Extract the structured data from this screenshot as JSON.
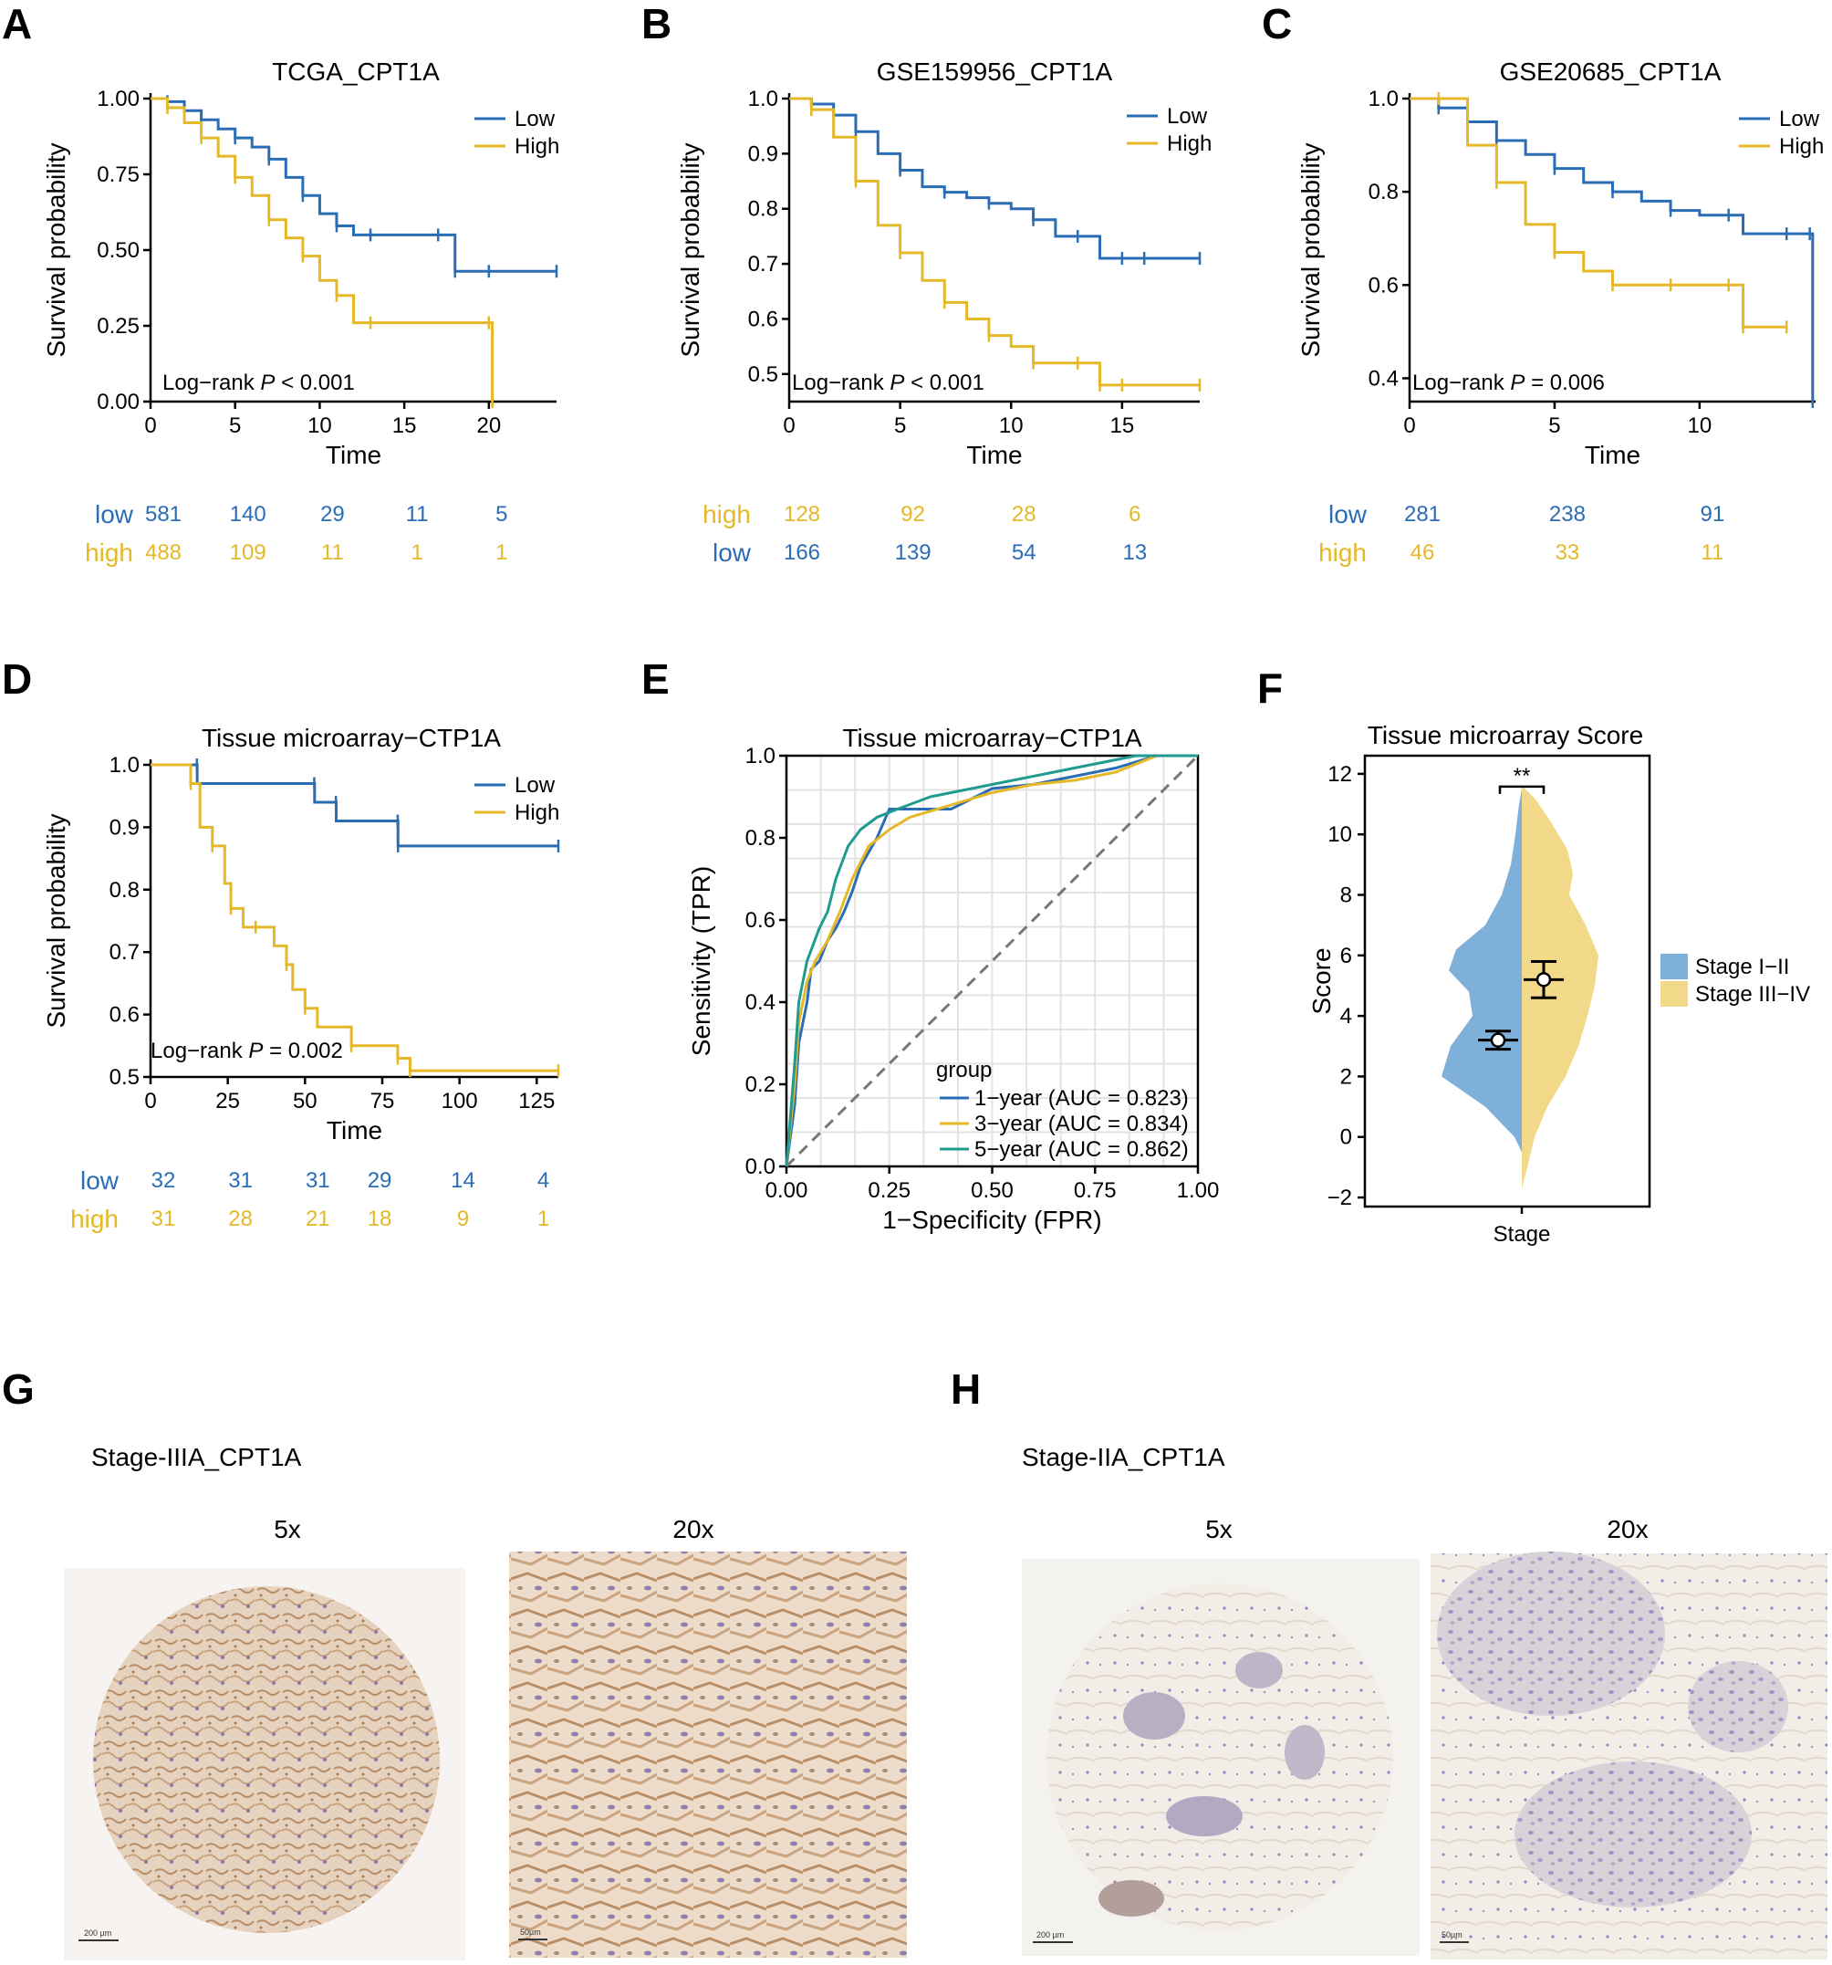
{
  "colors": {
    "low": "#2a6db5",
    "high": "#e4b827",
    "roc_green": "#1f9b8f",
    "violin_blue": "#7fb0da",
    "violin_yellow": "#f2d98a",
    "tissue_brown": "#c9a887",
    "tissue_blue": "#a9a3c7"
  },
  "panel_labels": [
    "A",
    "B",
    "C",
    "D",
    "E",
    "F",
    "G",
    "H"
  ],
  "km_common": {
    "ylabel": "Survival probability",
    "xlabel": "Time",
    "legend_low": "Low",
    "legend_high": "High"
  },
  "chart_data": [
    {
      "id": "A",
      "type": "line",
      "title": "TCGA_CPT1A",
      "xlim": [
        0,
        24
      ],
      "ylim": [
        0,
        1
      ],
      "xticks": [
        0,
        5,
        10,
        15,
        20
      ],
      "yticks": [
        0,
        0.25,
        0.5,
        0.75,
        1
      ],
      "yticklabels": [
        "0.00",
        "0.25",
        "0.50",
        "0.75",
        "1.00"
      ],
      "pvalue_prefix": "Log−rank ",
      "pvalue_p": "P",
      "pvalue_suffix": " < 0.001",
      "series": [
        {
          "name": "Low",
          "x": [
            0,
            1,
            2,
            3,
            4,
            5,
            6,
            7,
            8,
            9,
            10,
            11,
            12,
            13,
            15,
            17,
            18,
            20,
            24
          ],
          "y": [
            1,
            0.99,
            0.96,
            0.93,
            0.9,
            0.87,
            0.84,
            0.8,
            0.74,
            0.68,
            0.62,
            0.58,
            0.55,
            0.55,
            0.55,
            0.55,
            0.43,
            0.43,
            0.43
          ]
        },
        {
          "name": "High",
          "x": [
            0,
            1,
            2,
            3,
            4,
            5,
            6,
            7,
            8,
            9,
            10,
            11,
            12,
            13,
            20,
            20.2
          ],
          "y": [
            1,
            0.97,
            0.92,
            0.87,
            0.81,
            0.74,
            0.68,
            0.6,
            0.54,
            0.48,
            0.4,
            0.35,
            0.26,
            0.26,
            0.26,
            0
          ]
        }
      ],
      "risk_table": {
        "rows": [
          {
            "label": "low",
            "group": "low",
            "x": [
              0,
              5,
              10,
              15,
              20
            ],
            "values": [
              "581",
              "140",
              "29",
              "11",
              "5"
            ]
          },
          {
            "label": "high",
            "group": "high",
            "x": [
              0,
              5,
              10,
              15,
              20
            ],
            "values": [
              "488",
              "109",
              "11",
              "1",
              "1"
            ]
          }
        ]
      }
    },
    {
      "id": "B",
      "type": "line",
      "title": "GSE159956_CPT1A",
      "xlim": [
        0,
        18.5
      ],
      "ylim": [
        0.45,
        1
      ],
      "xticks": [
        0,
        5,
        10,
        15
      ],
      "yticks": [
        0.5,
        0.6,
        0.7,
        0.8,
        0.9,
        1
      ],
      "yticklabels": [
        "0.5",
        "0.6",
        "0.7",
        "0.8",
        "0.9",
        "1.0"
      ],
      "pvalue_prefix": "Log−rank ",
      "pvalue_p": "P",
      "pvalue_suffix": " < 0.001",
      "series": [
        {
          "name": "Low",
          "x": [
            0,
            1,
            2,
            3,
            4,
            5,
            6,
            7,
            8,
            9,
            10,
            11,
            12,
            13,
            14,
            15,
            16,
            18.5
          ],
          "y": [
            1,
            0.99,
            0.97,
            0.94,
            0.9,
            0.87,
            0.84,
            0.83,
            0.82,
            0.81,
            0.8,
            0.78,
            0.75,
            0.75,
            0.71,
            0.71,
            0.71,
            0.71
          ]
        },
        {
          "name": "High",
          "x": [
            0,
            1,
            2,
            3,
            4,
            5,
            6,
            7,
            8,
            9,
            10,
            11,
            12,
            13,
            14,
            15,
            18.5
          ],
          "y": [
            1,
            0.98,
            0.93,
            0.85,
            0.77,
            0.72,
            0.67,
            0.63,
            0.6,
            0.57,
            0.55,
            0.52,
            0.52,
            0.52,
            0.48,
            0.48,
            0.48
          ]
        }
      ],
      "risk_table": {
        "rows": [
          {
            "label": "high",
            "group": "high",
            "x": [
              0,
              5,
              10,
              15
            ],
            "values": [
              "128",
              "92",
              "28",
              "6"
            ]
          },
          {
            "label": "low",
            "group": "low",
            "x": [
              0,
              5,
              10,
              15
            ],
            "values": [
              "166",
              "139",
              "54",
              "13"
            ]
          }
        ]
      }
    },
    {
      "id": "C",
      "type": "line",
      "title": "GSE20685_CPT1A",
      "xlim": [
        0,
        14
      ],
      "ylim": [
        0.35,
        1
      ],
      "xticks": [
        0,
        5,
        10
      ],
      "yticks": [
        0.4,
        0.6,
        0.8,
        1
      ],
      "yticklabels": [
        "0.4",
        "0.6",
        "0.8",
        "1.0"
      ],
      "pvalue_prefix": "Log−rank ",
      "pvalue_p": "P",
      "pvalue_suffix": " = 0.006",
      "series": [
        {
          "name": "Low",
          "x": [
            0,
            1,
            2,
            3,
            4,
            5,
            6,
            7,
            8,
            9,
            10,
            11,
            11.5,
            13,
            13.8,
            13.9
          ],
          "y": [
            1,
            0.98,
            0.95,
            0.91,
            0.88,
            0.85,
            0.82,
            0.8,
            0.78,
            0.76,
            0.75,
            0.75,
            0.71,
            0.71,
            0.71,
            0.35
          ]
        },
        {
          "name": "High",
          "x": [
            0,
            1,
            2,
            3,
            4,
            5,
            6,
            7,
            8,
            9,
            10,
            11,
            11.5,
            13
          ],
          "y": [
            1,
            1,
            0.9,
            0.82,
            0.73,
            0.67,
            0.63,
            0.6,
            0.6,
            0.6,
            0.6,
            0.6,
            0.51,
            0.51
          ]
        }
      ],
      "risk_table": {
        "rows": [
          {
            "label": "low",
            "group": "low",
            "x": [
              0,
              5,
              10
            ],
            "values": [
              "281",
              "238",
              "91"
            ]
          },
          {
            "label": "high",
            "group": "high",
            "x": [
              0,
              5,
              10
            ],
            "values": [
              "46",
              "33",
              "11"
            ]
          }
        ]
      }
    },
    {
      "id": "D",
      "type": "line",
      "title": "Tissue microarray−CTP1A",
      "xlim": [
        0,
        132
      ],
      "ylim": [
        0.5,
        1
      ],
      "xticks": [
        0,
        25,
        50,
        75,
        100,
        125
      ],
      "yticks": [
        0.5,
        0.6,
        0.7,
        0.8,
        0.9,
        1
      ],
      "yticklabels": [
        "0.5",
        "0.6",
        "0.7",
        "0.8",
        "0.9",
        "1.0"
      ],
      "pvalue_prefix": "Log−rank ",
      "pvalue_p": "P",
      "pvalue_suffix": " = 0.002",
      "series": [
        {
          "name": "Low",
          "x": [
            0,
            15,
            15.1,
            53,
            53.1,
            60,
            60.1,
            80,
            80.1,
            132
          ],
          "y": [
            1,
            1,
            0.97,
            0.97,
            0.94,
            0.94,
            0.91,
            0.91,
            0.87,
            0.87
          ]
        },
        {
          "name": "High",
          "x": [
            0,
            13,
            16,
            20,
            24,
            26,
            30,
            34,
            40,
            44,
            46,
            50,
            54,
            65,
            70,
            80,
            84,
            132
          ],
          "y": [
            1,
            0.97,
            0.9,
            0.87,
            0.81,
            0.77,
            0.74,
            0.74,
            0.71,
            0.68,
            0.64,
            0.61,
            0.58,
            0.55,
            0.55,
            0.53,
            0.51,
            0.51
          ]
        }
      ],
      "risk_table": {
        "rows": [
          {
            "label": "low",
            "group": "low",
            "x": [
              0,
              25,
              50,
              70,
              97,
              123
            ],
            "values": [
              "32",
              "31",
              "31",
              "29",
              "14",
              "4"
            ]
          },
          {
            "label": "high",
            "group": "high",
            "x": [
              0,
              25,
              50,
              70,
              97,
              123
            ],
            "values": [
              "31",
              "28",
              "21",
              "18",
              "9",
              "1"
            ]
          }
        ]
      }
    },
    {
      "id": "E",
      "type": "line",
      "title": "Tissue microarray−CTP1A",
      "xlabel": "1−Specificity (FPR)",
      "ylabel": "Sensitivity (TPR)",
      "xlim": [
        0,
        1
      ],
      "ylim": [
        0,
        1
      ],
      "xticks": [
        0,
        0.25,
        0.5,
        0.75,
        1
      ],
      "xticklabels": [
        "0.00",
        "0.25",
        "0.50",
        "0.75",
        "1.00"
      ],
      "yticks": [
        0,
        0.2,
        0.4,
        0.6,
        0.8,
        1
      ],
      "yticklabels": [
        "0.0",
        "0.2",
        "0.4",
        "0.6",
        "0.8",
        "1.0"
      ],
      "legend_title": "group",
      "series": [
        {
          "name": "1−year (AUC = 0.823)",
          "color_key": "low",
          "x": [
            0,
            0.02,
            0.03,
            0.05,
            0.06,
            0.08,
            0.1,
            0.12,
            0.14,
            0.16,
            0.18,
            0.22,
            0.25,
            0.3,
            0.4,
            0.5,
            0.6,
            0.7,
            0.8,
            0.9,
            1
          ],
          "y": [
            0,
            0.15,
            0.3,
            0.4,
            0.48,
            0.5,
            0.55,
            0.58,
            0.62,
            0.67,
            0.73,
            0.8,
            0.87,
            0.87,
            0.87,
            0.92,
            0.93,
            0.95,
            0.97,
            1,
            1
          ]
        },
        {
          "name": "3−year (AUC = 0.834)",
          "color_key": "high",
          "x": [
            0,
            0.02,
            0.03,
            0.05,
            0.07,
            0.1,
            0.13,
            0.16,
            0.2,
            0.25,
            0.3,
            0.4,
            0.5,
            0.6,
            0.7,
            0.8,
            0.9,
            1
          ],
          "y": [
            0,
            0.2,
            0.35,
            0.45,
            0.5,
            0.55,
            0.62,
            0.7,
            0.78,
            0.82,
            0.85,
            0.88,
            0.91,
            0.93,
            0.94,
            0.96,
            1,
            1
          ]
        },
        {
          "name": "5−year (AUC = 0.862)",
          "color_key": "roc_green",
          "x": [
            0,
            0.02,
            0.03,
            0.05,
            0.08,
            0.1,
            0.12,
            0.15,
            0.18,
            0.22,
            0.27,
            0.35,
            0.45,
            0.55,
            0.65,
            0.75,
            0.85,
            1
          ],
          "y": [
            0,
            0.25,
            0.4,
            0.5,
            0.58,
            0.62,
            0.7,
            0.78,
            0.82,
            0.85,
            0.87,
            0.9,
            0.92,
            0.94,
            0.96,
            0.98,
            1,
            1
          ]
        }
      ]
    },
    {
      "id": "F",
      "type": "violin",
      "title": "Tissue microarray Score",
      "xlabel": "Stage",
      "ylabel": "Score",
      "ylim": [
        -2.3,
        12.6
      ],
      "yticks": [
        -2,
        0,
        2,
        4,
        6,
        8,
        10,
        12
      ],
      "yticklabels": [
        "−2",
        "0",
        "2",
        "4",
        "6",
        "8",
        "10",
        "12"
      ],
      "significance": "**",
      "series": [
        {
          "name": "Stage I−II",
          "color_key": "violin_blue",
          "mean": 3.2,
          "ci": [
            2.9,
            3.5
          ],
          "range": [
            -0.5,
            11.5
          ]
        },
        {
          "name": "Stage III−IV",
          "color_key": "violin_yellow",
          "mean": 5.2,
          "ci": [
            4.6,
            5.8
          ],
          "range": [
            -1.7,
            11.6
          ]
        }
      ]
    }
  ],
  "micrographs": {
    "G": {
      "title": "Stage-IIIA_CPT1A",
      "low_mag": "5x",
      "high_mag": "20x",
      "scale_low": "200 µm",
      "scale_high": "50µm"
    },
    "H": {
      "title": "Stage-IIA_CPT1A",
      "low_mag": "5x",
      "high_mag": "20x",
      "scale_low": "200 µm",
      "scale_high": "50µm"
    }
  }
}
